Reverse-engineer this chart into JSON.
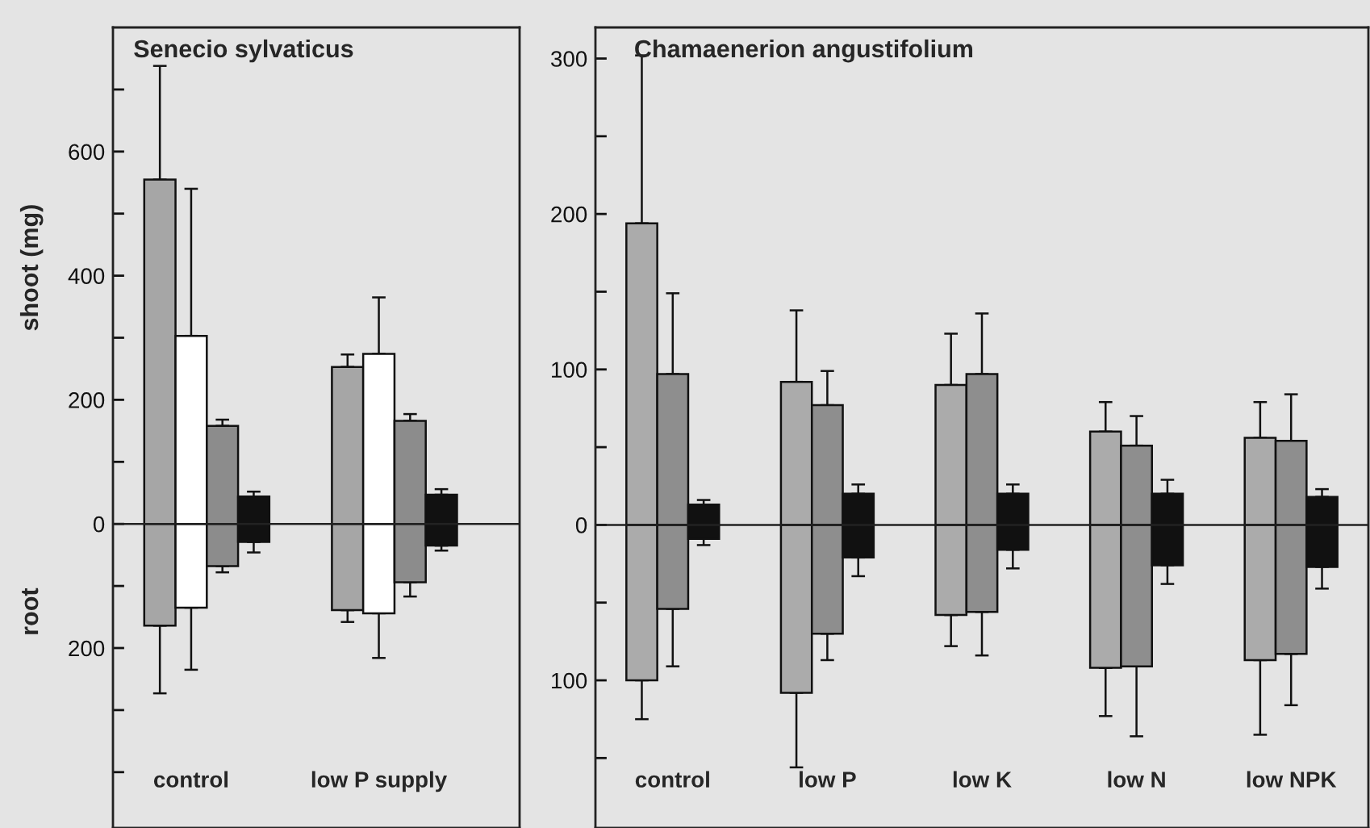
{
  "chart_data": [
    {
      "type": "bar",
      "stacked": true,
      "title": "Senecio sylvaticus",
      "ylabel": "shoot (mg)",
      "annotations": [
        "root"
      ],
      "categories": [
        null,
        null,
        "control",
        null,
        null,
        null,
        null,
        null,
        "low P supply",
        null,
        null,
        null,
        null
      ],
      "series": [
        {
          "colors": [
            null,
            "#a6a6a6",
            "#ffffff",
            "#8c8c8c",
            "#111111",
            null,
            null,
            "#a6a6a6",
            "#ffffff",
            "#8c8c8c",
            "#111111",
            null,
            null
          ],
          "values": [
            null,
            555,
            303,
            158,
            44,
            null,
            null,
            253,
            274,
            166,
            47,
            null,
            null
          ],
          "errors": [
            null,
            [
              555,
              738
            ],
            [
              303,
              540
            ],
            [
              158,
              168
            ],
            [
              44,
              52
            ],
            null,
            null,
            [
              253,
              273
            ],
            [
              274,
              365
            ],
            [
              166,
              177
            ],
            [
              47,
              56
            ],
            null,
            null
          ]
        },
        {
          "colors": [
            null,
            "#a6a6a6",
            "#ffffff",
            "#8c8c8c",
            "#111111",
            null,
            null,
            "#a6a6a6",
            "#ffffff",
            "#8c8c8c",
            "#111111",
            null,
            null
          ],
          "values": [
            null,
            -164,
            -135,
            -68,
            -29,
            null,
            null,
            -139,
            -144,
            -94,
            -35,
            null,
            null
          ],
          "errors": [
            null,
            [
              -273,
              -164
            ],
            [
              -235,
              -135
            ],
            [
              -78,
              -68
            ],
            [
              -46,
              -29
            ],
            null,
            null,
            [
              -158,
              -139
            ],
            [
              -216,
              -144
            ],
            [
              -117,
              -94
            ],
            [
              -43,
              -35
            ],
            null,
            null
          ]
        }
      ],
      "ylim": [
        -490,
        800
      ],
      "yticks": [
        {
          "value": -400,
          "label": null
        },
        {
          "value": -300,
          "label": null
        },
        {
          "value": -200,
          "label": "200"
        },
        {
          "value": -100,
          "label": null
        },
        0,
        {
          "value": 100,
          "label": null
        },
        200,
        {
          "value": 300,
          "label": null
        },
        400,
        {
          "value": 500,
          "label": null
        },
        600,
        {
          "value": 700,
          "label": null
        }
      ],
      "ref_lines": [
        {
          "axis": "y",
          "value": 0
        }
      ]
    },
    {
      "type": "bar",
      "stacked": true,
      "title": "Chamaenerion angustifolium",
      "categories": [
        null,
        null,
        "control",
        null,
        null,
        null,
        null,
        "low P",
        null,
        null,
        null,
        null,
        "low K",
        null,
        null,
        null,
        null,
        "low N",
        null,
        null,
        null,
        null,
        "low NPK",
        null,
        null
      ],
      "series": [
        {
          "colors": [
            null,
            "#ababab",
            "#8e8e8e",
            "#111111",
            null,
            null,
            "#ababab",
            "#8e8e8e",
            "#111111",
            null,
            null,
            "#ababab",
            "#8e8e8e",
            "#111111",
            null,
            null,
            "#ababab",
            "#8e8e8e",
            "#111111",
            null,
            null,
            "#ababab",
            "#8e8e8e",
            "#111111",
            null
          ],
          "values": [
            null,
            194,
            97,
            13,
            null,
            null,
            92,
            77,
            20,
            null,
            null,
            90,
            97,
            20,
            null,
            null,
            60,
            51,
            20,
            null,
            null,
            56,
            54,
            18,
            null
          ],
          "errors": [
            null,
            [
              194,
              302
            ],
            [
              97,
              149
            ],
            [
              13,
              16
            ],
            null,
            null,
            [
              92,
              138
            ],
            [
              77,
              99
            ],
            [
              20,
              26
            ],
            null,
            null,
            [
              90,
              123
            ],
            [
              97,
              136
            ],
            [
              20,
              26
            ],
            null,
            null,
            [
              60,
              79
            ],
            [
              51,
              70
            ],
            [
              20,
              29
            ],
            null,
            null,
            [
              56,
              79
            ],
            [
              54,
              84
            ],
            [
              18,
              23
            ],
            null
          ]
        },
        {
          "colors": [
            null,
            "#ababab",
            "#8e8e8e",
            "#111111",
            null,
            null,
            "#ababab",
            "#8e8e8e",
            "#111111",
            null,
            null,
            "#ababab",
            "#8e8e8e",
            "#111111",
            null,
            null,
            "#ababab",
            "#8e8e8e",
            "#111111",
            null,
            null,
            "#ababab",
            "#8e8e8e",
            "#111111",
            null
          ],
          "values": [
            null,
            -100,
            -54,
            -9,
            null,
            null,
            -108,
            -70,
            -21,
            null,
            null,
            -58,
            -56,
            -16,
            null,
            null,
            -92,
            -91,
            -26,
            null,
            null,
            -87,
            -83,
            -27,
            null
          ],
          "errors": [
            null,
            [
              -125,
              -100
            ],
            [
              -91,
              -54
            ],
            [
              -13,
              -9
            ],
            null,
            null,
            [
              -156,
              -108
            ],
            [
              -87,
              -70
            ],
            [
              -33,
              -21
            ],
            null,
            null,
            [
              -78,
              -58
            ],
            [
              -84,
              -56
            ],
            [
              -28,
              -16
            ],
            null,
            null,
            [
              -123,
              -92
            ],
            [
              -136,
              -91
            ],
            [
              -38,
              -26
            ],
            null,
            null,
            [
              -135,
              -87
            ],
            [
              -116,
              -83
            ],
            [
              -41,
              -27
            ],
            null
          ]
        }
      ],
      "ylim": [
        -195,
        320
      ],
      "yticks": [
        {
          "value": -150,
          "label": null
        },
        {
          "value": -100,
          "label": "100"
        },
        {
          "value": -50,
          "label": null
        },
        0,
        {
          "value": 50,
          "label": null
        },
        100,
        {
          "value": 150,
          "label": null
        },
        200,
        {
          "value": 250,
          "label": null
        },
        300
      ],
      "ref_lines": [
        {
          "axis": "y",
          "value": 0
        }
      ]
    }
  ]
}
